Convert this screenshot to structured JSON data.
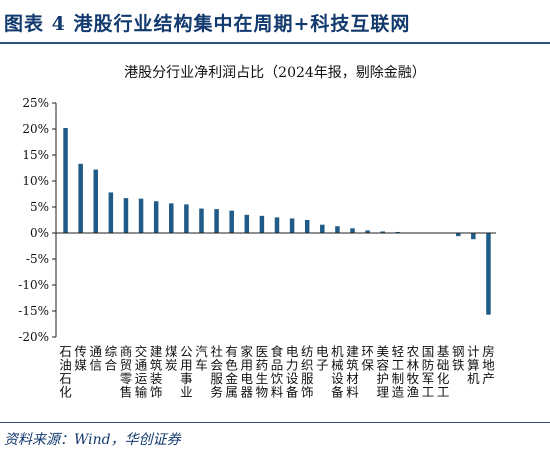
{
  "figure": {
    "title": "图表 4   港股行业结构集中在周期+科技互联网",
    "source": "资料来源：Wind，华创证券"
  },
  "colors": {
    "bar": "#1f5b86",
    "axis": "#222222",
    "title": "#123a6e"
  },
  "chart_data": {
    "type": "bar",
    "title": "港股分行业净利润占比（2024年报，剔除金融）",
    "xlabel": "",
    "ylabel": "",
    "ylim": [
      -20,
      25
    ],
    "yticks": [
      -20,
      -15,
      -10,
      -5,
      0,
      5,
      10,
      15,
      20,
      25
    ],
    "ytick_labels": [
      "-20%",
      "-15%",
      "-10%",
      "-5%",
      "0%",
      "5%",
      "10%",
      "15%",
      "20%",
      "25%"
    ],
    "grid": false,
    "legend": "none",
    "categories": [
      "石油石化",
      "传媒",
      "通信",
      "综合",
      "商贸零售",
      "交通运输",
      "建筑装饰",
      "煤炭",
      "公用事业",
      "汽车",
      "社会服务",
      "有色金属",
      "家用电器",
      "医药生物",
      "食品饮料",
      "电力设备",
      "纺织服饰",
      "电子",
      "机械设备",
      "建筑材料",
      "环保",
      "美容护理",
      "轻工制造",
      "农林牧渔",
      "国防军工",
      "基础化工",
      "钢铁",
      "计算机",
      "房地产"
    ],
    "values": [
      20.2,
      13.3,
      12.2,
      7.8,
      6.7,
      6.6,
      6.1,
      5.7,
      5.5,
      4.7,
      4.6,
      4.3,
      3.5,
      3.3,
      3.0,
      2.8,
      2.5,
      1.6,
      1.3,
      0.9,
      0.5,
      0.3,
      0.2,
      0.1,
      0.05,
      0.0,
      -0.6,
      -1.2,
      -15.7
    ]
  }
}
